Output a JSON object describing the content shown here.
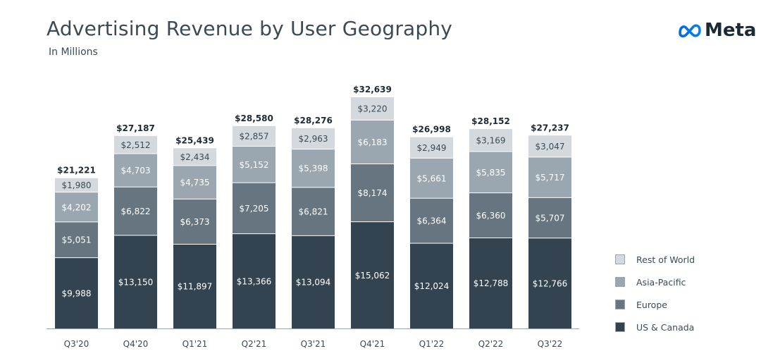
{
  "header": {
    "title": "Advertising Revenue by User Geography",
    "subtitle": "In Millions"
  },
  "logo": {
    "text": "Meta",
    "icon": "meta-infinity-icon"
  },
  "legend": [
    {
      "label": "Rest of World",
      "color": "#d3d9dd"
    },
    {
      "label": "Asia-Pacific",
      "color": "#9aa7b0"
    },
    {
      "label": "Europe",
      "color": "#66757f"
    },
    {
      "label": "US & Canada",
      "color": "#334450"
    }
  ],
  "chart_data": {
    "type": "bar",
    "stacked": true,
    "categories": [
      "Q3'20",
      "Q4'20",
      "Q1'21",
      "Q2'21",
      "Q3'21",
      "Q4'21",
      "Q1'22",
      "Q2'22",
      "Q3'22"
    ],
    "totals": [
      "$21,221",
      "$27,187",
      "$25,439",
      "$28,580",
      "$28,276",
      "$32,639",
      "$26,998",
      "$28,152",
      "$27,237"
    ],
    "series": [
      {
        "name": "US & Canada",
        "color": "#334450",
        "text_color": "#ffffff",
        "values": [
          9988,
          13150,
          11897,
          13366,
          13094,
          15062,
          12024,
          12788,
          12766
        ],
        "labels": [
          "$9,988",
          "$13,150",
          "$11,897",
          "$13,366",
          "$13,094",
          "$15,062",
          "$12,024",
          "$12,788",
          "$12,766"
        ]
      },
      {
        "name": "Europe",
        "color": "#66757f",
        "text_color": "#ffffff",
        "values": [
          5051,
          6822,
          6373,
          7205,
          6821,
          8174,
          6364,
          6360,
          5707
        ],
        "labels": [
          "$5,051",
          "$6,822",
          "$6,373",
          "$7,205",
          "$6,821",
          "$8,174",
          "$6,364",
          "$6,360",
          "$5,707"
        ]
      },
      {
        "name": "Asia-Pacific",
        "color": "#9aa7b0",
        "text_color": "#ffffff",
        "values": [
          4202,
          4703,
          4735,
          5152,
          5398,
          6183,
          5661,
          5835,
          5717
        ],
        "labels": [
          "$4,202",
          "$4,703",
          "$4,735",
          "$5,152",
          "$5,398",
          "$6,183",
          "$5,661",
          "$5,835",
          "$5,717"
        ]
      },
      {
        "name": "Rest of World",
        "color": "#d3d9dd",
        "text_color": "#3c4a53",
        "values": [
          1980,
          2512,
          2434,
          2857,
          2963,
          3220,
          2949,
          3169,
          3047
        ],
        "labels": [
          "$1,980",
          "$2,512",
          "$2,434",
          "$2,857",
          "$2,963",
          "$3,220",
          "$2,949",
          "$3,169",
          "$3,047"
        ]
      }
    ],
    "ylim": [
      0,
      32639
    ],
    "grid": false,
    "legend_position": "right"
  }
}
